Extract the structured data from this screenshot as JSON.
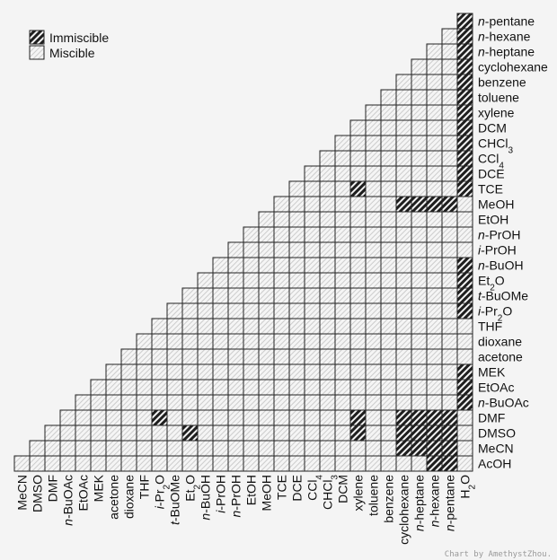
{
  "chart_data": {
    "type": "heatmap",
    "legend": [
      {
        "key": "immiscible",
        "label": "Immiscible"
      },
      {
        "key": "miscible",
        "label": "Miscible"
      }
    ],
    "solvents": [
      [
        {
          "t": "MeCN"
        }
      ],
      [
        {
          "t": "DMSO"
        }
      ],
      [
        {
          "t": "DMF"
        }
      ],
      [
        {
          "t": "n",
          "i": true
        },
        {
          "t": "-BuOAc"
        }
      ],
      [
        {
          "t": "EtOAc"
        }
      ],
      [
        {
          "t": "MEK"
        }
      ],
      [
        {
          "t": "acetone"
        }
      ],
      [
        {
          "t": "dioxane"
        }
      ],
      [
        {
          "t": "THF"
        }
      ],
      [
        {
          "t": "i",
          "i": true
        },
        {
          "t": "-Pr"
        },
        {
          "t": "2",
          "s": true
        },
        {
          "t": "O"
        }
      ],
      [
        {
          "t": "t",
          "i": true
        },
        {
          "t": "-BuOMe"
        }
      ],
      [
        {
          "t": "Et"
        },
        {
          "t": "2",
          "s": true
        },
        {
          "t": "O"
        }
      ],
      [
        {
          "t": "n",
          "i": true
        },
        {
          "t": "-BuOH"
        }
      ],
      [
        {
          "t": "i",
          "i": true
        },
        {
          "t": "-PrOH"
        }
      ],
      [
        {
          "t": "n",
          "i": true
        },
        {
          "t": "-PrOH"
        }
      ],
      [
        {
          "t": "EtOH"
        }
      ],
      [
        {
          "t": "MeOH"
        }
      ],
      [
        {
          "t": "TCE"
        }
      ],
      [
        {
          "t": "DCE"
        }
      ],
      [
        {
          "t": "CCl"
        },
        {
          "t": "4",
          "s": true
        }
      ],
      [
        {
          "t": "CHCl"
        },
        {
          "t": "3",
          "s": true
        }
      ],
      [
        {
          "t": "DCM"
        }
      ],
      [
        {
          "t": "xylene"
        }
      ],
      [
        {
          "t": "toluene"
        }
      ],
      [
        {
          "t": "benzene"
        }
      ],
      [
        {
          "t": "cyclohexane"
        }
      ],
      [
        {
          "t": "n",
          "i": true
        },
        {
          "t": "-heptane"
        }
      ],
      [
        {
          "t": "n",
          "i": true
        },
        {
          "t": "-hexane"
        }
      ],
      [
        {
          "t": "n",
          "i": true
        },
        {
          "t": "-pentane"
        }
      ],
      [
        {
          "t": "H"
        },
        {
          "t": "2",
          "s": true
        },
        {
          "t": "O"
        }
      ]
    ],
    "row_solvents": [
      [
        {
          "t": "n",
          "i": true
        },
        {
          "t": "-pentane"
        }
      ],
      [
        {
          "t": "n",
          "i": true
        },
        {
          "t": "-hexane"
        }
      ],
      [
        {
          "t": "n",
          "i": true
        },
        {
          "t": "-heptane"
        }
      ],
      [
        {
          "t": "cyclohexane"
        }
      ],
      [
        {
          "t": "benzene"
        }
      ],
      [
        {
          "t": "toluene"
        }
      ],
      [
        {
          "t": "xylene"
        }
      ],
      [
        {
          "t": "DCM"
        }
      ],
      [
        {
          "t": "CHCl"
        },
        {
          "t": "3",
          "s": true
        }
      ],
      [
        {
          "t": "CCl"
        },
        {
          "t": "4",
          "s": true
        }
      ],
      [
        {
          "t": "DCE"
        }
      ],
      [
        {
          "t": "TCE"
        }
      ],
      [
        {
          "t": "MeOH"
        }
      ],
      [
        {
          "t": "EtOH"
        }
      ],
      [
        {
          "t": "n",
          "i": true
        },
        {
          "t": "-PrOH"
        }
      ],
      [
        {
          "t": "i",
          "i": true
        },
        {
          "t": "-PrOH"
        }
      ],
      [
        {
          "t": "n",
          "i": true
        },
        {
          "t": "-BuOH"
        }
      ],
      [
        {
          "t": "Et"
        },
        {
          "t": "2",
          "s": true
        },
        {
          "t": "O"
        }
      ],
      [
        {
          "t": "t",
          "i": true
        },
        {
          "t": "-BuOMe"
        }
      ],
      [
        {
          "t": "i",
          "i": true
        },
        {
          "t": "-Pr"
        },
        {
          "t": "2",
          "s": true
        },
        {
          "t": "O"
        }
      ],
      [
        {
          "t": "THF"
        }
      ],
      [
        {
          "t": "dioxane"
        }
      ],
      [
        {
          "t": "acetone"
        }
      ],
      [
        {
          "t": "MEK"
        }
      ],
      [
        {
          "t": "EtOAc"
        }
      ],
      [
        {
          "t": "n",
          "i": true
        },
        {
          "t": "-BuOAc"
        }
      ],
      [
        {
          "t": "DMF"
        }
      ],
      [
        {
          "t": "DMSO"
        }
      ],
      [
        {
          "t": "MeCN"
        }
      ],
      [
        {
          "t": "AcOH"
        }
      ]
    ],
    "immiscible_pairs": [
      [
        "H2O",
        "n-pentane"
      ],
      [
        "H2O",
        "n-hexane"
      ],
      [
        "H2O",
        "n-heptane"
      ],
      [
        "H2O",
        "cyclohexane"
      ],
      [
        "H2O",
        "benzene"
      ],
      [
        "H2O",
        "toluene"
      ],
      [
        "H2O",
        "xylene"
      ],
      [
        "H2O",
        "DCM"
      ],
      [
        "H2O",
        "CHCl3"
      ],
      [
        "H2O",
        "CCl4"
      ],
      [
        "H2O",
        "DCE"
      ],
      [
        "H2O",
        "TCE"
      ],
      [
        "xylene",
        "TCE"
      ],
      [
        "MeOH",
        "cyclohexane"
      ],
      [
        "MeOH",
        "n-heptane"
      ],
      [
        "MeOH",
        "n-hexane"
      ],
      [
        "MeOH",
        "n-pentane"
      ],
      [
        "H2O",
        "n-BuOH"
      ],
      [
        "H2O",
        "Et2O"
      ],
      [
        "H2O",
        "t-BuOMe"
      ],
      [
        "H2O",
        "i-Pr2O"
      ],
      [
        "H2O",
        "MEK"
      ],
      [
        "H2O",
        "EtOAc"
      ],
      [
        "H2O",
        "n-BuOAc"
      ],
      [
        "DMF",
        "i-Pr2O"
      ],
      [
        "DMF",
        "xylene"
      ],
      [
        "DMF",
        "cyclohexane"
      ],
      [
        "DMF",
        "n-heptane"
      ],
      [
        "DMF",
        "n-hexane"
      ],
      [
        "DMF",
        "n-pentane"
      ],
      [
        "DMSO",
        "Et2O"
      ],
      [
        "DMSO",
        "xylene"
      ],
      [
        "DMSO",
        "cyclohexane"
      ],
      [
        "DMSO",
        "n-heptane"
      ],
      [
        "DMSO",
        "n-hexane"
      ],
      [
        "DMSO",
        "n-pentane"
      ],
      [
        "MeCN",
        "cyclohexane"
      ],
      [
        "MeCN",
        "n-heptane"
      ],
      [
        "MeCN",
        "n-hexane"
      ],
      [
        "MeCN",
        "n-pentane"
      ],
      [
        "AcOH",
        "n-hexane"
      ],
      [
        "AcOH",
        "n-pentane"
      ]
    ],
    "credit": "Chart by AmethystZhou."
  }
}
